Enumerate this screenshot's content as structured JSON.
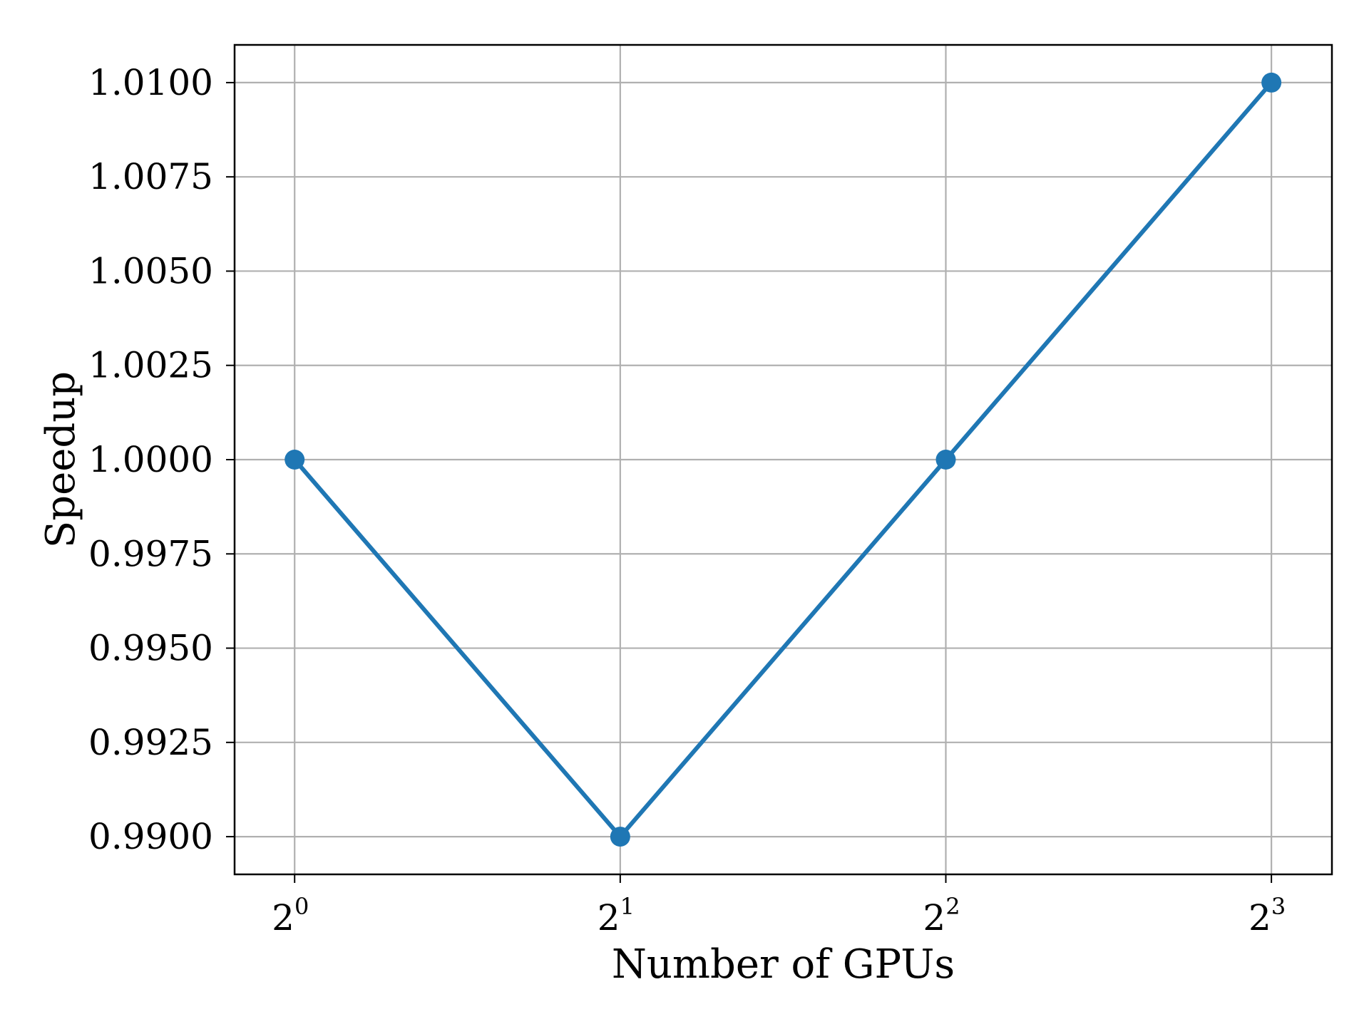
{
  "chart_data": {
    "type": "line",
    "title": "",
    "xlabel": "Number of GPUs",
    "ylabel": "Speedup",
    "x_scale": "log2",
    "x": [
      1,
      2,
      4,
      8
    ],
    "x_tick_values": [
      1,
      2,
      4,
      8
    ],
    "x_tick_labels": [
      {
        "base": "2",
        "exp": "0"
      },
      {
        "base": "2",
        "exp": "1"
      },
      {
        "base": "2",
        "exp": "2"
      },
      {
        "base": "2",
        "exp": "3"
      }
    ],
    "series": [
      {
        "values": [
          1.0,
          0.99,
          1.0,
          1.01
        ],
        "color": "#1f77b4",
        "marker": "circle"
      }
    ],
    "y_ticks": [
      0.99,
      0.9925,
      0.995,
      0.9975,
      1.0,
      1.0025,
      1.005,
      1.0075,
      1.01
    ],
    "y_tick_labels": [
      "0.9900",
      "0.9925",
      "0.9950",
      "0.9975",
      "1.0000",
      "1.0025",
      "1.0050",
      "1.0075",
      "1.0100"
    ],
    "ylim": [
      0.989,
      1.011
    ],
    "xlim": [
      0.88,
      9.1
    ],
    "grid": true,
    "grid_color": "#b0b0b0",
    "axis_color": "#000000"
  }
}
